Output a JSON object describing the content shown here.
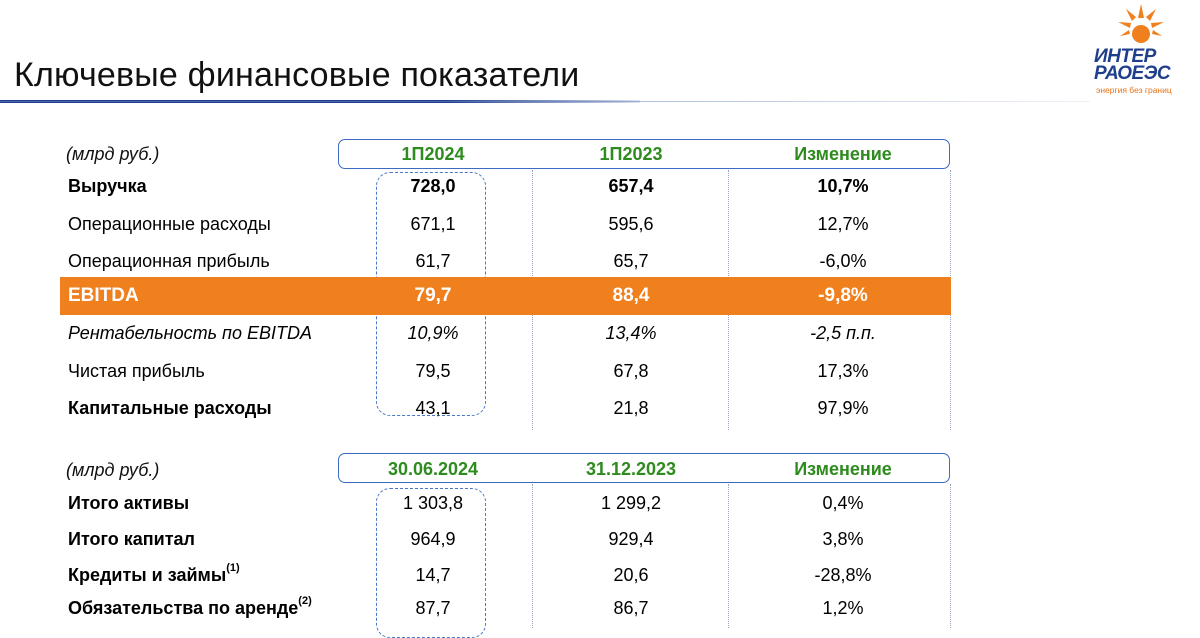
{
  "title": "Ключевые финансовые показатели",
  "logo": {
    "line1": "ИНТЕР",
    "line2": "РАОЕЭС",
    "tagline": "энергия без границ"
  },
  "table1": {
    "unit": "(млрд руб.)",
    "headers": [
      "1П2024",
      "1П2023",
      "Изменение"
    ],
    "rows": [
      {
        "label": "Выручка",
        "values": [
          "728,0",
          "657,4",
          "10,7%"
        ]
      },
      {
        "label": "Операционные расходы",
        "values": [
          "671,1",
          "595,6",
          "12,7%"
        ]
      },
      {
        "label": "Операционная прибыль",
        "values": [
          "61,7",
          "65,7",
          "-6,0%"
        ]
      },
      {
        "label": "EBITDA",
        "values": [
          "79,7",
          "88,4",
          "-9,8%"
        ]
      },
      {
        "label": "Рентабельность по EBITDA",
        "values": [
          "10,9%",
          "13,4%",
          "-2,5 п.п."
        ]
      },
      {
        "label": "Чистая прибыль",
        "values": [
          "79,5",
          "67,8",
          "17,3%"
        ]
      },
      {
        "label": "Капитальные расходы",
        "values": [
          "43,1",
          "21,8",
          "97,9%"
        ]
      }
    ]
  },
  "table2": {
    "unit": "(млрд руб.)",
    "headers": [
      "30.06.2024",
      "31.12.2023",
      "Изменение"
    ],
    "rows": [
      {
        "label": "Итого активы",
        "values": [
          "1 303,8",
          "1 299,2",
          "0,4%"
        ]
      },
      {
        "label": "Итого капитал",
        "values": [
          "964,9",
          "929,4",
          "3,8%"
        ]
      },
      {
        "label": "Кредиты и займы",
        "note": "(1)",
        "values": [
          "14,7",
          "20,6",
          "-28,8%"
        ]
      },
      {
        "label": "Обязательства по аренде",
        "note": "(2)",
        "values": [
          "87,7",
          "86,7",
          "1,2%"
        ]
      }
    ]
  },
  "colors": {
    "accent_blue": "#1f3f8c",
    "header_green": "#2e8b1e",
    "ebitda_orange": "#f0801e"
  }
}
